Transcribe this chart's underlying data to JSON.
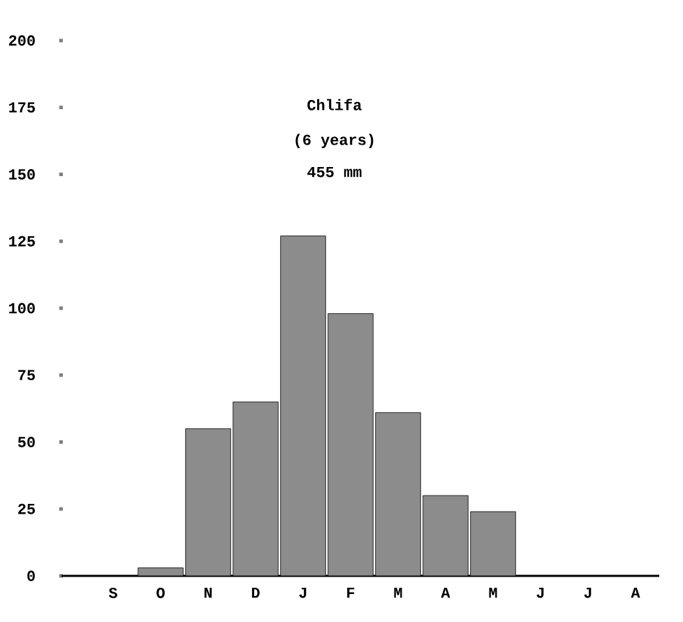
{
  "chart_data": {
    "type": "bar",
    "title": "Chlifa",
    "subtitle": "(6 years)",
    "annotations": [
      "455 mm"
    ],
    "categories": [
      "S",
      "O",
      "N",
      "D",
      "J",
      "F",
      "M",
      "A",
      "M",
      "J",
      "J",
      "A"
    ],
    "values": [
      null,
      3,
      55,
      65,
      127,
      98,
      61,
      30,
      24,
      null,
      null,
      null
    ],
    "color": "#8c8c8c",
    "ylim": [
      0,
      200
    ],
    "yticks": [
      0,
      25,
      50,
      75,
      100,
      125,
      150,
      175,
      200
    ],
    "grid": false
  }
}
